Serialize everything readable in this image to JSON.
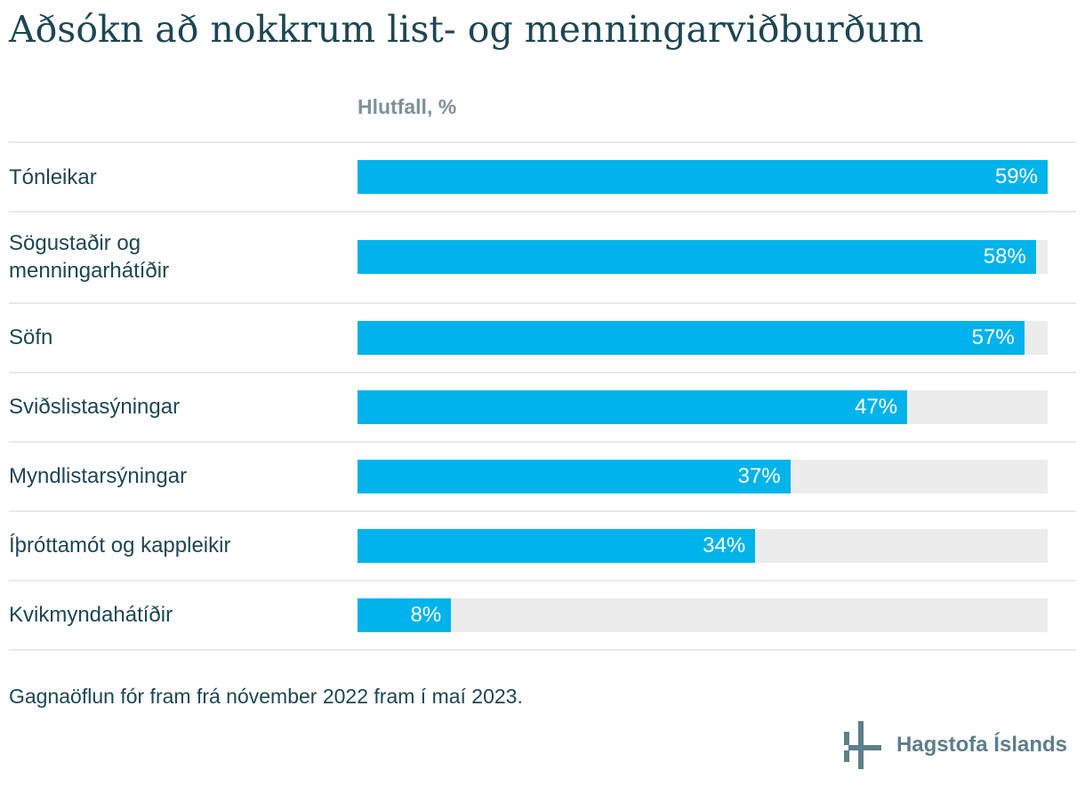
{
  "page": {
    "title": "Aðsókn að nokkrum list- og menningarviðburðum",
    "footnote": "Gagnaöflun fór fram frá nóvember 2022 fram í maí 2023.",
    "logo_text": "Hagstofa Íslands"
  },
  "chart_data": {
    "type": "bar",
    "orientation": "horizontal",
    "title": "Aðsókn að nokkrum list- og menningarviðburðum",
    "axis_title": "Hlutfall, %",
    "categories": [
      "Tónleikar",
      "Sögustaðir og menningarhátíðir",
      "Söfn",
      "Sviðslistasýningar",
      "Myndlistarsýningar",
      "Íþróttamót og kappleikir",
      "Kvikmyndahátíðir"
    ],
    "values": [
      59,
      58,
      57,
      47,
      37,
      34,
      8
    ],
    "value_suffix": "%",
    "xlim": [
      0,
      59
    ],
    "grid": false,
    "legend": "none",
    "data_labels": "inside-end",
    "footnote": "Gagnaöflun fór fram frá nóvember 2022 fram í maí 2023."
  },
  "colors": {
    "bar": "#00b3ea",
    "track": "#ececec",
    "sep": "#e9e9e9",
    "ink": "#1d4754",
    "muted": "#7e9198",
    "logo": "#5e7e8c"
  }
}
